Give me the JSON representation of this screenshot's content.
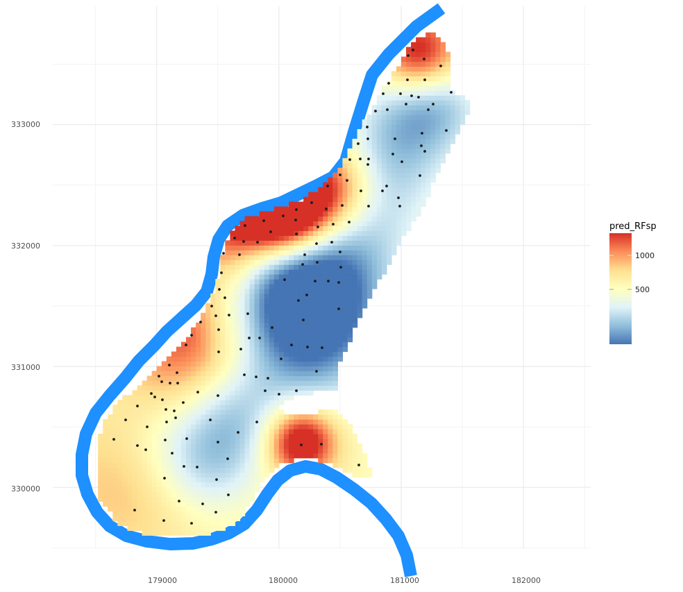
{
  "chart_data": {
    "type": "heatmap",
    "title": "",
    "xlabel": "",
    "ylabel": "",
    "xlim": [
      178150,
      182550
    ],
    "ylim": [
      329490,
      333980
    ],
    "x_ticks": [
      "179000",
      "180000",
      "181000",
      "182000"
    ],
    "y_ticks": [
      "330000",
      "331000",
      "332000",
      "333000"
    ],
    "grid": true,
    "legend": {
      "title": "pred_RFsp",
      "placement": "right",
      "breaks": [
        "1000",
        "500"
      ],
      "range": [
        115,
        1340
      ],
      "colors": [
        "#4575b4",
        "#91bfdb",
        "#e0f3f8",
        "#ffffbf",
        "#fee090",
        "#fc8d59",
        "#d73027"
      ]
    },
    "river_color": "#1e90ff",
    "grid_cell_size_m": 40,
    "sample_point_color": "#1a1a1a"
  }
}
